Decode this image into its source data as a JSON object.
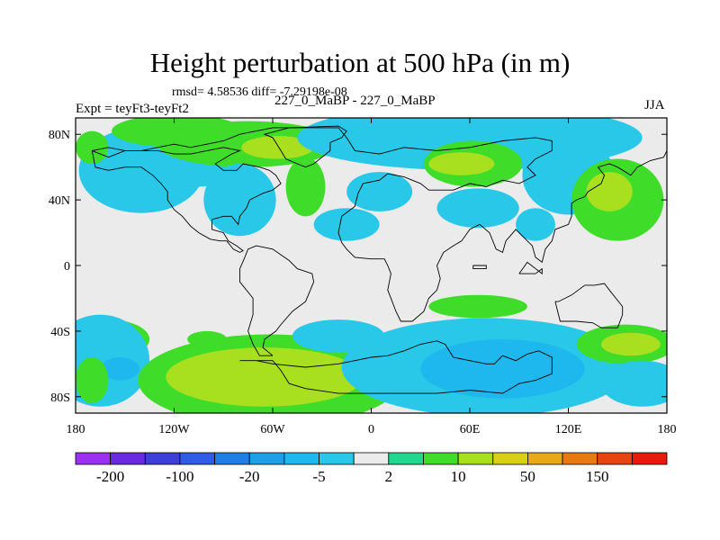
{
  "title": "Height perturbation at 500 hPa (in m)",
  "stats": "rmsd= 4.58536 diff= -7.29198e-08",
  "left_label": "Expt = teyFt3-teyFt2",
  "center_label": "227_0_MaBP - 227_0_MaBP",
  "right_label": "JJA",
  "chart_data": {
    "type": "heatmap",
    "title": "Height perturbation at 500 hPa (in m)",
    "x": {
      "range": [
        -180,
        180
      ],
      "ticks": [
        -180,
        -120,
        -60,
        0,
        60,
        120,
        180
      ],
      "tick_labels": [
        "180",
        "120W",
        "60W",
        "0",
        "60E",
        "120E",
        "180"
      ]
    },
    "y": {
      "range": [
        -90,
        90
      ],
      "ticks": [
        80,
        40,
        0,
        -40,
        -80
      ],
      "tick_labels": [
        "80N",
        "40N",
        "0",
        "40S",
        "80S"
      ]
    },
    "colorbar": {
      "levels": [
        -200,
        -150,
        -100,
        -50,
        -20,
        -10,
        -5,
        -2,
        2,
        5,
        10,
        20,
        50,
        100,
        150,
        200
      ],
      "labels": [
        "-200",
        "-100",
        "-20",
        "-5",
        "2",
        "10",
        "50",
        "150"
      ],
      "colors": [
        "#9b30f0",
        "#6a2ae0",
        "#3e3ed8",
        "#2f5be6",
        "#1f7fe6",
        "#1ca0e6",
        "#1fb8ee",
        "#29c8e8",
        "#ebebeb",
        "#21d68f",
        "#3fdc2a",
        "#a8e020",
        "#d8d018",
        "#e8a818",
        "#e87a10",
        "#e84410",
        "#e81a10"
      ]
    },
    "regions": [
      {
        "kind": "blob",
        "cx": -140,
        "cy": 58,
        "rx": 38,
        "ry": 26,
        "level": -5
      },
      {
        "kind": "blob",
        "cx": -118,
        "cy": 82,
        "rx": 40,
        "ry": 10,
        "level": 5
      },
      {
        "kind": "blob",
        "cx": -105,
        "cy": 60,
        "rx": 18,
        "ry": 12,
        "level": -5
      },
      {
        "kind": "blob",
        "cx": -75,
        "cy": 74,
        "rx": 55,
        "ry": 14,
        "level": 5
      },
      {
        "kind": "blob",
        "cx": -57,
        "cy": 72,
        "rx": 22,
        "ry": 7,
        "level": 10
      },
      {
        "kind": "blob",
        "cx": -80,
        "cy": 40,
        "rx": 22,
        "ry": 22,
        "level": -5
      },
      {
        "kind": "blob",
        "cx": -40,
        "cy": 48,
        "rx": 12,
        "ry": 18,
        "level": 5
      },
      {
        "kind": "blob",
        "cx": -15,
        "cy": 25,
        "rx": 20,
        "ry": 10,
        "level": -5
      },
      {
        "kind": "blob",
        "cx": 5,
        "cy": 45,
        "rx": 20,
        "ry": 12,
        "level": -5
      },
      {
        "kind": "blob",
        "cx": 60,
        "cy": 78,
        "rx": 105,
        "ry": 20,
        "level": -5
      },
      {
        "kind": "blob",
        "cx": 62,
        "cy": 62,
        "rx": 30,
        "ry": 14,
        "level": 5
      },
      {
        "kind": "blob",
        "cx": 55,
        "cy": 62,
        "rx": 20,
        "ry": 7,
        "level": 10
      },
      {
        "kind": "blob",
        "cx": 120,
        "cy": 55,
        "rx": 28,
        "ry": 24,
        "level": -5
      },
      {
        "kind": "blob",
        "cx": 150,
        "cy": 40,
        "rx": 28,
        "ry": 25,
        "level": 5
      },
      {
        "kind": "blob",
        "cx": 145,
        "cy": 45,
        "rx": 14,
        "ry": 12,
        "level": 10
      },
      {
        "kind": "blob",
        "cx": 65,
        "cy": 35,
        "rx": 25,
        "ry": 12,
        "level": -5
      },
      {
        "kind": "blob",
        "cx": 100,
        "cy": 25,
        "rx": 12,
        "ry": 10,
        "level": -5
      },
      {
        "kind": "blob",
        "cx": -160,
        "cy": -45,
        "rx": 25,
        "ry": 12,
        "level": 5
      },
      {
        "kind": "blob",
        "cx": -165,
        "cy": -58,
        "rx": 30,
        "ry": 28,
        "level": -5
      },
      {
        "kind": "blob",
        "cx": -153,
        "cy": -63,
        "rx": 12,
        "ry": 7,
        "level": -10
      },
      {
        "kind": "blob",
        "cx": -100,
        "cy": -45,
        "rx": 12,
        "ry": 5,
        "level": 5
      },
      {
        "kind": "blob",
        "cx": -62,
        "cy": -70,
        "rx": 80,
        "ry": 28,
        "level": 5
      },
      {
        "kind": "blob",
        "cx": -65,
        "cy": -68,
        "rx": 60,
        "ry": 18,
        "level": 10
      },
      {
        "kind": "blob",
        "cx": -20,
        "cy": -43,
        "rx": 28,
        "ry": 10,
        "level": -5
      },
      {
        "kind": "blob",
        "cx": 70,
        "cy": -62,
        "rx": 88,
        "ry": 30,
        "level": -5
      },
      {
        "kind": "blob",
        "cx": 80,
        "cy": -63,
        "rx": 50,
        "ry": 18,
        "level": -10
      },
      {
        "kind": "blob",
        "cx": 65,
        "cy": -25,
        "rx": 30,
        "ry": 7,
        "level": 5
      },
      {
        "kind": "blob",
        "cx": 155,
        "cy": -48,
        "rx": 30,
        "ry": 12,
        "level": 5
      },
      {
        "kind": "blob",
        "cx": 158,
        "cy": -48,
        "rx": 18,
        "ry": 7,
        "level": 10
      },
      {
        "kind": "blob",
        "cx": 165,
        "cy": -72,
        "rx": 25,
        "ry": 14,
        "level": -5
      },
      {
        "kind": "blob",
        "cx": -170,
        "cy": -70,
        "rx": 10,
        "ry": 14,
        "level": 5
      },
      {
        "kind": "blob",
        "cx": -170,
        "cy": 72,
        "rx": 10,
        "ry": 10,
        "level": 5
      }
    ]
  }
}
